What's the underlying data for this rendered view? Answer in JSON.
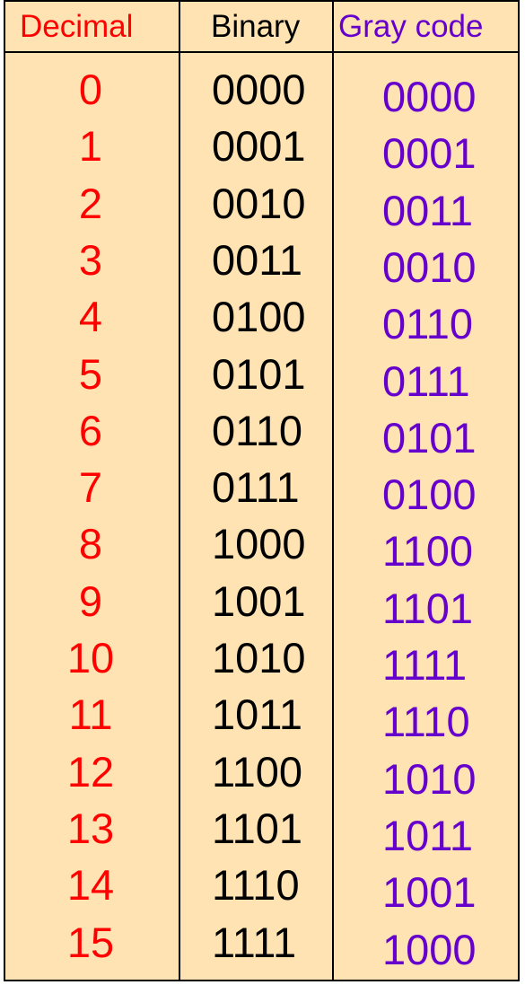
{
  "colors": {
    "background": "#FFE3B3",
    "decimal": "#FF0000",
    "binary": "#000000",
    "gray": "#6600CC"
  },
  "headers": {
    "decimal": "Decimal",
    "binary": "Binary",
    "gray": "Gray code"
  },
  "rows": [
    {
      "decimal": "0",
      "binary": "0000",
      "gray": "0000"
    },
    {
      "decimal": "1",
      "binary": "0001",
      "gray": "0001"
    },
    {
      "decimal": "2",
      "binary": "0010",
      "gray": "0011"
    },
    {
      "decimal": "3",
      "binary": "0011",
      "gray": "0010"
    },
    {
      "decimal": "4",
      "binary": "0100",
      "gray": "0110"
    },
    {
      "decimal": "5",
      "binary": "0101",
      "gray": "0111"
    },
    {
      "decimal": "6",
      "binary": "0110",
      "gray": "0101"
    },
    {
      "decimal": "7",
      "binary": "0111",
      "gray": "0100"
    },
    {
      "decimal": "8",
      "binary": "1000",
      "gray": "1100"
    },
    {
      "decimal": "9",
      "binary": "1001",
      "gray": "1101"
    },
    {
      "decimal": "10",
      "binary": "1010",
      "gray": "1111"
    },
    {
      "decimal": "11",
      "binary": "1011",
      "gray": "1110"
    },
    {
      "decimal": "12",
      "binary": "1100",
      "gray": "1010"
    },
    {
      "decimal": "13",
      "binary": "1101",
      "gray": "1011"
    },
    {
      "decimal": "14",
      "binary": "1110",
      "gray": "1001"
    },
    {
      "decimal": "15",
      "binary": "1111",
      "gray": "1000"
    }
  ]
}
